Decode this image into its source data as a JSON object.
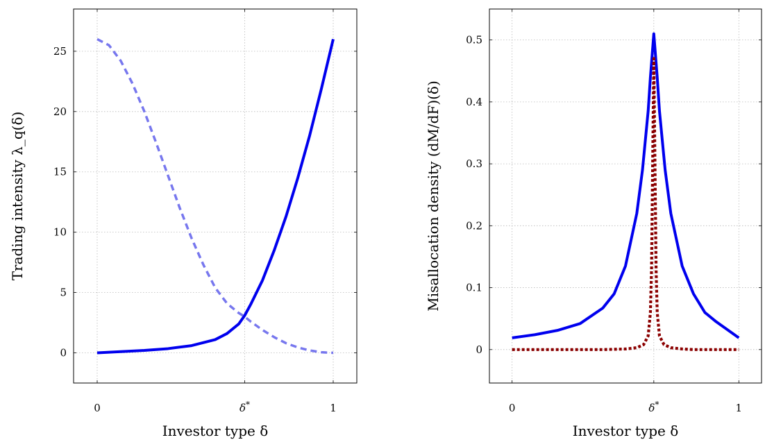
{
  "chart_data": [
    {
      "type": "line",
      "title": "",
      "xlabel": "Investor type δ",
      "ylabel": "Trading intensity λ_q(δ)",
      "xlim": [
        -0.1,
        1.1
      ],
      "ylim": [
        -2.5,
        28.5
      ],
      "x_ticks": [
        0,
        0.625,
        1
      ],
      "x_tick_labels": [
        "0",
        "δ*",
        "1"
      ],
      "y_ticks": [
        0,
        5,
        10,
        15,
        20,
        25
      ],
      "y_tick_labels": [
        "0",
        "5",
        "10",
        "15",
        "20",
        "25"
      ],
      "grid": true,
      "legend": "none",
      "series": [
        {
          "color": "#0000ee",
          "style": "solid",
          "x": [
            0,
            0.1,
            0.2,
            0.3,
            0.4,
            0.5,
            0.55,
            0.6,
            0.625,
            0.65,
            0.7,
            0.75,
            0.8,
            0.85,
            0.9,
            0.95,
            1.0
          ],
          "y": [
            0,
            0.1,
            0.2,
            0.35,
            0.6,
            1.1,
            1.6,
            2.4,
            3.1,
            4.0,
            6.0,
            8.5,
            11.3,
            14.5,
            18.0,
            21.9,
            26.0
          ]
        },
        {
          "color": "#7777ee",
          "style": "dashed",
          "x": [
            0,
            0.05,
            0.1,
            0.15,
            0.2,
            0.25,
            0.3,
            0.35,
            0.4,
            0.45,
            0.5,
            0.55,
            0.6,
            0.625,
            0.65,
            0.7,
            0.75,
            0.8,
            0.85,
            0.9,
            0.95,
            1.0
          ],
          "y": [
            26.0,
            25.5,
            24.2,
            22.3,
            20.0,
            17.4,
            14.7,
            12.0,
            9.5,
            7.3,
            5.4,
            4.1,
            3.3,
            3.0,
            2.6,
            1.9,
            1.3,
            0.8,
            0.45,
            0.2,
            0.05,
            0
          ]
        }
      ]
    },
    {
      "type": "line",
      "title": "",
      "xlabel": "Investor type δ",
      "ylabel": "Misallocation density (dM/dF)(δ)",
      "xlim": [
        -0.1,
        1.1
      ],
      "ylim": [
        -0.054,
        0.55
      ],
      "x_ticks": [
        0,
        0.625,
        1
      ],
      "x_tick_labels": [
        "0",
        "δ*",
        "1"
      ],
      "y_ticks": [
        0,
        0.1,
        0.2,
        0.3,
        0.4,
        0.5
      ],
      "y_tick_labels": [
        "0",
        "0.1",
        "0.2",
        "0.3",
        "0.4",
        "0.5"
      ],
      "grid": true,
      "legend": "none",
      "series": [
        {
          "color": "#0000ee",
          "style": "solid",
          "x": [
            0,
            0.1,
            0.2,
            0.3,
            0.4,
            0.45,
            0.5,
            0.55,
            0.575,
            0.6,
            0.61,
            0.625,
            0.64,
            0.65,
            0.675,
            0.7,
            0.75,
            0.8,
            0.85,
            0.9,
            1.0
          ],
          "y": [
            0.019,
            0.024,
            0.031,
            0.042,
            0.067,
            0.09,
            0.135,
            0.22,
            0.29,
            0.385,
            0.44,
            0.51,
            0.44,
            0.385,
            0.29,
            0.22,
            0.135,
            0.09,
            0.06,
            0.045,
            0.019
          ]
        },
        {
          "color": "#8b0000",
          "style": "dotted",
          "x": [
            0,
            0.1,
            0.2,
            0.3,
            0.4,
            0.5,
            0.55,
            0.58,
            0.6,
            0.61,
            0.615,
            0.62,
            0.625,
            0.63,
            0.635,
            0.64,
            0.65,
            0.67,
            0.7,
            0.75,
            0.8,
            0.9,
            1.0
          ],
          "y": [
            0,
            0,
            0,
            0,
            0,
            0.001,
            0.003,
            0.008,
            0.022,
            0.06,
            0.13,
            0.3,
            0.47,
            0.3,
            0.13,
            0.06,
            0.022,
            0.008,
            0.003,
            0.001,
            0,
            0,
            0
          ]
        }
      ]
    }
  ]
}
